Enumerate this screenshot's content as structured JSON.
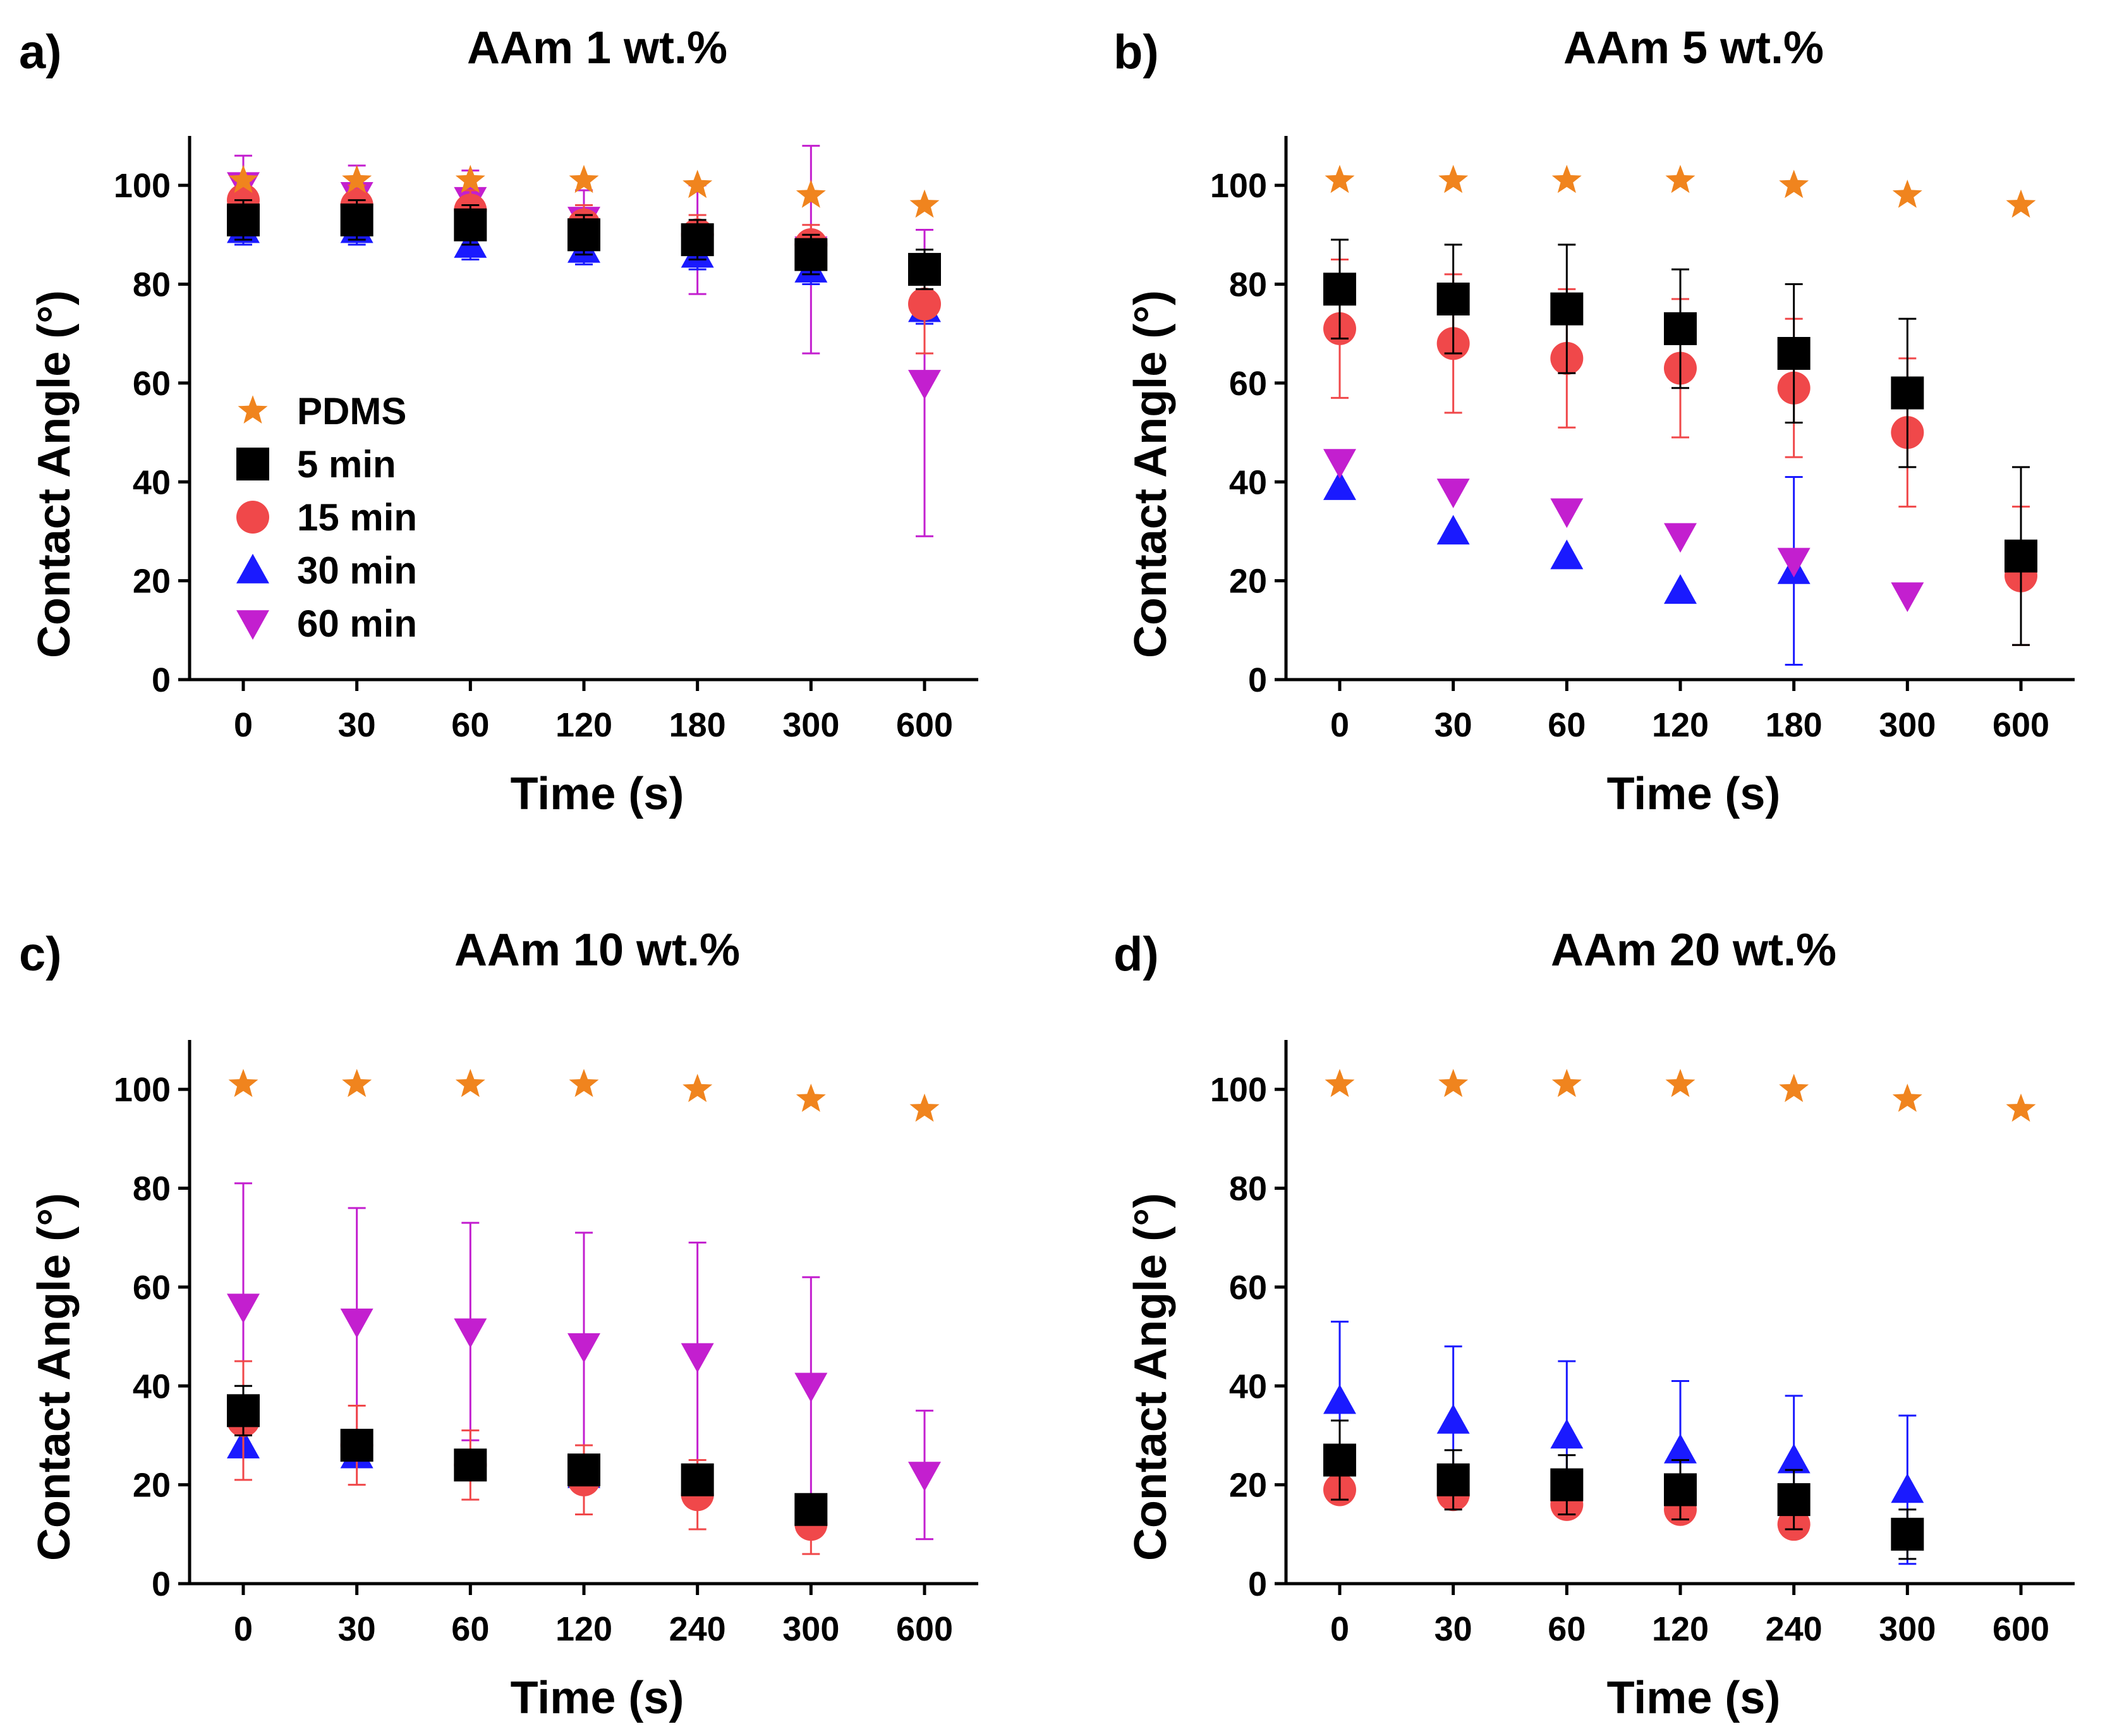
{
  "colors": {
    "PDMS": "#f0841e",
    "5 min": "#000000",
    "15 min": "#f0484a",
    "30 min": "#1a1aff",
    "60 min": "#c31fcf"
  },
  "markers": {
    "PDMS": "star",
    "5 min": "square",
    "15 min": "circle",
    "30 min": "triangle-up",
    "60 min": "triangle-down"
  },
  "legend": {
    "entries": [
      "PDMS",
      "5 min",
      "15 min",
      "30 min",
      "60 min"
    ],
    "placement": "inside-lower-left of panel a"
  },
  "chart_data": [
    {
      "type": "scatter",
      "panel": "a)",
      "title": "AAm 1 wt.%",
      "xlabel": "Time (s)",
      "ylabel": "Contact Angle (°)",
      "categories": [
        "0",
        "30",
        "60",
        "120",
        "180",
        "300",
        "600"
      ],
      "ylim": [
        0,
        110
      ],
      "yticks": [
        0,
        20,
        40,
        60,
        80,
        100
      ],
      "series": [
        {
          "name": "60 min",
          "values": [
            100,
            98,
            97,
            93,
            89,
            87,
            60
          ],
          "err": [
            6,
            6,
            6,
            6,
            11,
            21,
            31
          ]
        },
        {
          "name": "30 min",
          "values": [
            91,
            91,
            88,
            87,
            86,
            83,
            75
          ],
          "err": [
            3,
            3,
            3,
            3,
            3,
            3,
            3
          ]
        },
        {
          "name": "15 min",
          "values": [
            97,
            96,
            95,
            92,
            90,
            88,
            76
          ],
          "err": [
            4,
            4,
            4,
            4,
            4,
            4,
            10
          ]
        },
        {
          "name": "5 min",
          "values": [
            93,
            93,
            92,
            90,
            89,
            86,
            83
          ],
          "err": [
            4,
            4,
            4,
            4,
            4,
            4,
            4
          ]
        },
        {
          "name": "PDMS",
          "values": [
            101,
            101,
            101,
            101,
            100,
            98,
            96
          ],
          "err": [
            0,
            0,
            0,
            0,
            0,
            0,
            0
          ]
        }
      ]
    },
    {
      "type": "scatter",
      "panel": "b)",
      "title": "AAm 5 wt.%",
      "xlabel": "Time (s)",
      "ylabel": "Contact Angle (°)",
      "categories": [
        "0",
        "30",
        "60",
        "120",
        "180",
        "300",
        "600"
      ],
      "ylim": [
        0,
        110
      ],
      "yticks": [
        0,
        20,
        40,
        60,
        80,
        100
      ],
      "series": [
        {
          "name": "30 min",
          "values": [
            39,
            30,
            25,
            18,
            22,
            null,
            null
          ],
          "err": [
            0,
            0,
            0,
            0,
            19,
            0,
            0
          ]
        },
        {
          "name": "60 min",
          "values": [
            44,
            38,
            34,
            29,
            24,
            17,
            null
          ],
          "err": [
            0,
            0,
            0,
            0,
            0,
            0,
            0
          ]
        },
        {
          "name": "15 min",
          "values": [
            71,
            68,
            65,
            63,
            59,
            50,
            21
          ],
          "err": [
            14,
            14,
            14,
            14,
            14,
            15,
            14
          ]
        },
        {
          "name": "5 min",
          "values": [
            79,
            77,
            75,
            71,
            66,
            58,
            25
          ],
          "err": [
            10,
            11,
            13,
            12,
            14,
            15,
            18
          ]
        },
        {
          "name": "PDMS",
          "values": [
            101,
            101,
            101,
            101,
            100,
            98,
            96
          ],
          "err": [
            0,
            0,
            0,
            0,
            0,
            0,
            0
          ]
        }
      ]
    },
    {
      "type": "scatter",
      "panel": "c)",
      "title": "AAm 10 wt.%",
      "xlabel": "Time (s)",
      "ylabel": "Contact Angle (°)",
      "categories": [
        "0",
        "30",
        "60",
        "120",
        "240",
        "300",
        "600"
      ],
      "ylim": [
        0,
        110
      ],
      "yticks": [
        0,
        20,
        40,
        60,
        80,
        100
      ],
      "series": [
        {
          "name": "60 min",
          "values": [
            56,
            53,
            51,
            48,
            46,
            40,
            22
          ],
          "err": [
            25,
            23,
            22,
            23,
            23,
            22,
            13
          ]
        },
        {
          "name": "30 min",
          "values": [
            28,
            26,
            24,
            22,
            20,
            15,
            null
          ],
          "err": [
            0,
            0,
            0,
            0,
            0,
            0,
            0
          ]
        },
        {
          "name": "15 min",
          "values": [
            33,
            28,
            24,
            21,
            18,
            12,
            null
          ],
          "err": [
            12,
            8,
            7,
            7,
            7,
            6,
            0
          ]
        },
        {
          "name": "5 min",
          "values": [
            35,
            28,
            24,
            23,
            21,
            15,
            null
          ],
          "err": [
            5,
            0,
            0,
            0,
            0,
            0,
            0
          ]
        },
        {
          "name": "PDMS",
          "values": [
            101,
            101,
            101,
            101,
            100,
            98,
            96
          ],
          "err": [
            0,
            0,
            0,
            0,
            0,
            0,
            0
          ]
        }
      ]
    },
    {
      "type": "scatter",
      "panel": "d)",
      "title": "AAm 20 wt.%",
      "xlabel": "Time (s)",
      "ylabel": "Contact Angle (°)",
      "categories": [
        "0",
        "30",
        "60",
        "120",
        "240",
        "300",
        "600"
      ],
      "ylim": [
        0,
        110
      ],
      "yticks": [
        0,
        20,
        40,
        60,
        80,
        100
      ],
      "series": [
        {
          "name": "30 min",
          "values": [
            37,
            33,
            30,
            27,
            25,
            19,
            null
          ],
          "err": [
            16,
            15,
            15,
            14,
            13,
            15,
            0
          ]
        },
        {
          "name": "15 min",
          "values": [
            19,
            18,
            16,
            15,
            12,
            null,
            null
          ],
          "err": [
            0,
            0,
            0,
            0,
            0,
            0,
            0
          ]
        },
        {
          "name": "5 min",
          "values": [
            25,
            21,
            20,
            19,
            17,
            10,
            null
          ],
          "err": [
            8,
            6,
            6,
            6,
            6,
            5,
            0
          ]
        },
        {
          "name": "PDMS",
          "values": [
            101,
            101,
            101,
            101,
            100,
            98,
            96
          ],
          "err": [
            0,
            0,
            0,
            0,
            0,
            0,
            0
          ]
        }
      ]
    }
  ]
}
